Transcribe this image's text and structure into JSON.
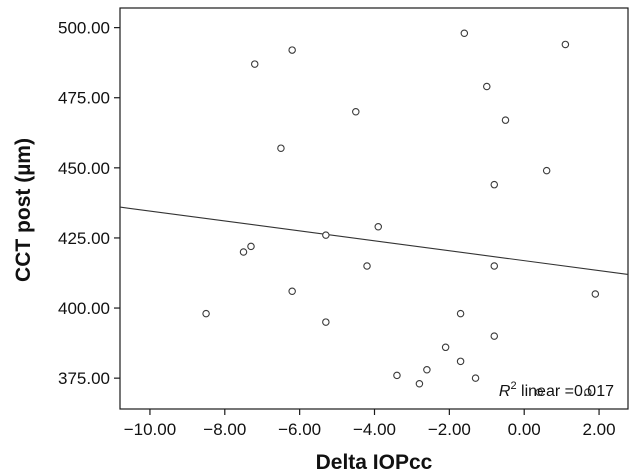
{
  "chart_data": {
    "type": "scatter",
    "title": "",
    "xlabel": "Delta IOPcc",
    "ylabel": "CCT post (µm)",
    "xlim": [
      -10.8,
      2.8
    ],
    "ylim": [
      364,
      507
    ],
    "x_ticks": [
      -10,
      -8,
      -6,
      -4,
      -2,
      0,
      2
    ],
    "x_tick_labels": [
      "−10.00",
      "−8.00",
      "−6.00",
      "−4.00",
      "−2.00",
      "0.00",
      "2.00"
    ],
    "y_ticks": [
      375,
      400,
      425,
      450,
      475,
      500
    ],
    "y_tick_labels": [
      "375.00",
      "400.00",
      "425.00",
      "450.00",
      "475.00",
      "500.00"
    ],
    "grid": false,
    "points": [
      {
        "x": -8.5,
        "y": 398
      },
      {
        "x": -7.5,
        "y": 420
      },
      {
        "x": -7.3,
        "y": 422
      },
      {
        "x": -7.2,
        "y": 487
      },
      {
        "x": -6.5,
        "y": 457
      },
      {
        "x": -6.2,
        "y": 492
      },
      {
        "x": -6.2,
        "y": 406
      },
      {
        "x": -5.3,
        "y": 426
      },
      {
        "x": -5.3,
        "y": 395
      },
      {
        "x": -4.5,
        "y": 470
      },
      {
        "x": -4.2,
        "y": 415
      },
      {
        "x": -3.9,
        "y": 429
      },
      {
        "x": -3.4,
        "y": 376
      },
      {
        "x": -2.8,
        "y": 373
      },
      {
        "x": -2.6,
        "y": 378
      },
      {
        "x": -2.1,
        "y": 386
      },
      {
        "x": -1.7,
        "y": 398
      },
      {
        "x": -1.7,
        "y": 381
      },
      {
        "x": -1.6,
        "y": 498
      },
      {
        "x": -1.3,
        "y": 375
      },
      {
        "x": -1.0,
        "y": 479
      },
      {
        "x": -0.8,
        "y": 444
      },
      {
        "x": -0.8,
        "y": 415
      },
      {
        "x": -0.8,
        "y": 390
      },
      {
        "x": -0.5,
        "y": 467
      },
      {
        "x": 0.4,
        "y": 370
      },
      {
        "x": 0.6,
        "y": 449
      },
      {
        "x": 1.1,
        "y": 494
      },
      {
        "x": 1.7,
        "y": 370
      },
      {
        "x": 1.9,
        "y": 405
      }
    ],
    "fit_line": {
      "x": [
        -10.8,
        2.8
      ],
      "y": [
        436,
        412
      ]
    },
    "annotation": {
      "italic": "R",
      "superscript": "2",
      "text": " linear =0.017"
    }
  }
}
